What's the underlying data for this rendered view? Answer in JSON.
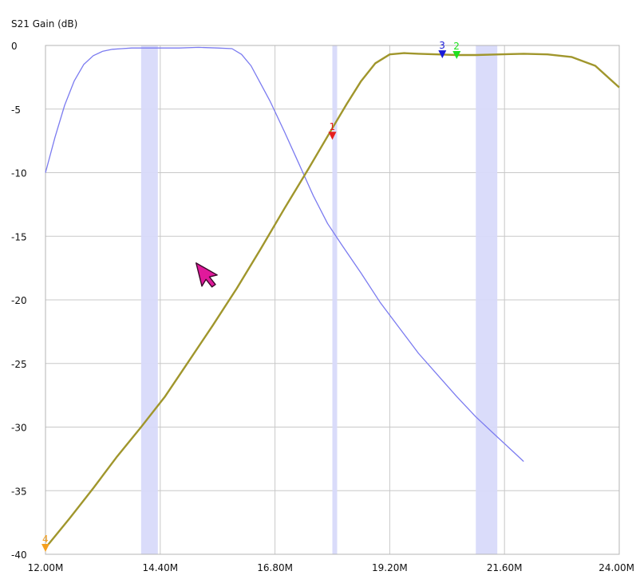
{
  "chart_data": {
    "type": "line",
    "title": "S21 Gain (dB)",
    "xlabel": "",
    "ylabel": "",
    "xlim": [
      12.0,
      24.0
    ],
    "ylim": [
      -40,
      0
    ],
    "grid": true,
    "x_ticks": [
      {
        "value": 12.0,
        "label": "12.00M"
      },
      {
        "value": 14.4,
        "label": "14.40M"
      },
      {
        "value": 16.8,
        "label": "16.80M"
      },
      {
        "value": 19.2,
        "label": "19.20M"
      },
      {
        "value": 21.6,
        "label": "21.60M"
      },
      {
        "value": 24.0,
        "label": "24.00M"
      }
    ],
    "y_ticks": [
      {
        "value": 0,
        "label": "0"
      },
      {
        "value": -5,
        "label": "-5"
      },
      {
        "value": -10,
        "label": "-10"
      },
      {
        "value": -15,
        "label": "-15"
      },
      {
        "value": -20,
        "label": "-20"
      },
      {
        "value": -25,
        "label": "-25"
      },
      {
        "value": -30,
        "label": "-30"
      },
      {
        "value": -35,
        "label": "-35"
      },
      {
        "value": -40,
        "label": "-40"
      }
    ],
    "bands": [
      {
        "from": 14.0,
        "to": 14.35
      },
      {
        "from": 18.0,
        "to": 18.1
      },
      {
        "from": 21.0,
        "to": 21.45
      }
    ],
    "band_color": "#d8dafa",
    "series": [
      {
        "color": "#7b7bf0",
        "x": [
          12.0,
          12.2,
          12.4,
          12.6,
          12.8,
          13.0,
          13.2,
          13.4,
          13.6,
          13.8,
          14.0,
          14.4,
          14.8,
          15.2,
          15.6,
          15.9,
          16.1,
          16.3,
          16.5,
          16.7,
          17.0,
          17.3,
          17.6,
          17.9,
          18.2,
          18.6,
          19.0,
          19.4,
          19.8,
          20.2,
          20.6,
          21.0,
          21.4,
          21.8,
          22.0
        ],
        "y": [
          -10,
          -7.2,
          -4.7,
          -2.8,
          -1.5,
          -0.8,
          -0.45,
          -0.3,
          -0.25,
          -0.2,
          -0.2,
          -0.2,
          -0.2,
          -0.15,
          -0.2,
          -0.25,
          -0.7,
          -1.6,
          -3.0,
          -4.4,
          -6.8,
          -9.3,
          -11.8,
          -14.0,
          -15.7,
          -17.9,
          -20.2,
          -22.2,
          -24.2,
          -25.9,
          -27.6,
          -29.2,
          -30.6,
          -32.0,
          -32.7
        ]
      },
      {
        "color": "#a0962c",
        "x": [
          12.0,
          12.5,
          13.0,
          13.5,
          14.0,
          14.5,
          15.0,
          15.5,
          16.0,
          16.5,
          17.0,
          17.5,
          18.0,
          18.3,
          18.6,
          18.9,
          19.2,
          19.5,
          19.8,
          20.2,
          20.6,
          21.0,
          21.5,
          22.0,
          22.5,
          23.0,
          23.5,
          24.0
        ],
        "y": [
          -39.5,
          -37.2,
          -34.8,
          -32.3,
          -30.0,
          -27.6,
          -24.8,
          -22.0,
          -19.1,
          -16.0,
          -12.8,
          -9.7,
          -6.5,
          -4.6,
          -2.8,
          -1.4,
          -0.7,
          -0.6,
          -0.65,
          -0.7,
          -0.75,
          -0.75,
          -0.7,
          -0.65,
          -0.7,
          -0.9,
          -1.6,
          -3.3
        ]
      }
    ],
    "markers": [
      {
        "label": "1",
        "x": 18.0,
        "y": -7.1,
        "color": "#e61e1e"
      },
      {
        "label": "2",
        "x": 20.6,
        "y": -0.75,
        "color": "#20e020"
      },
      {
        "label": "3",
        "x": 20.3,
        "y": -0.7,
        "color": "#1a1ad8"
      },
      {
        "label": "4",
        "x": 12.0,
        "y": -39.5,
        "color": "#f4a020"
      }
    ],
    "cursor": {
      "x": 15.15,
      "y": -17.1,
      "color": "#e0199b"
    }
  }
}
